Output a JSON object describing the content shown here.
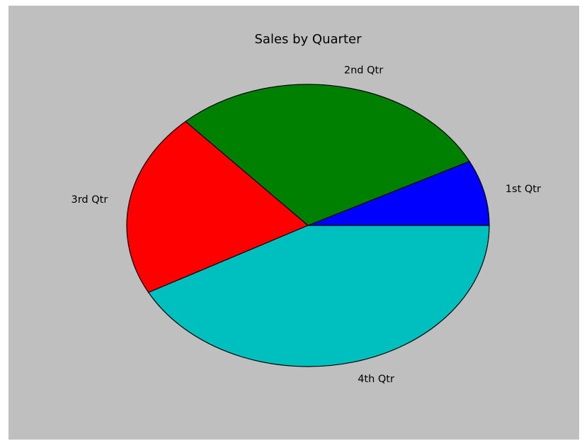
{
  "chart_data": {
    "type": "pie",
    "title": "Sales by Quarter",
    "categories": [
      "1st Qtr",
      "2nd Qtr",
      "3rd Qtr",
      "4th Qtr"
    ],
    "values": [
      8.2,
      32,
      23,
      46
    ],
    "colors": [
      "#0000ff",
      "#008000",
      "#ff0000",
      "#00bfbf"
    ],
    "start_angle_deg": 0,
    "direction": "counterclockwise",
    "background_color": "#bfbfbf",
    "legend": "none"
  }
}
